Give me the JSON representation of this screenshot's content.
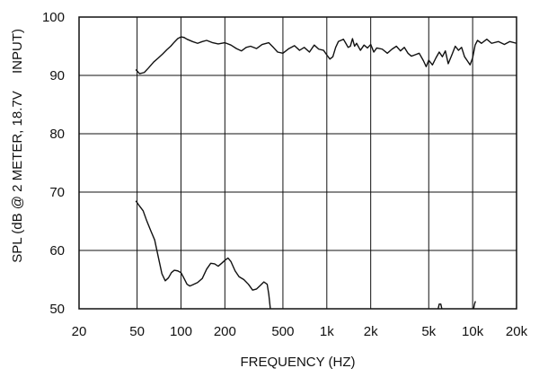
{
  "chart_data": {
    "type": "line",
    "title": "",
    "xlabel": "FREQUENCY  (HZ)",
    "ylabel_parts": [
      "SPL (dB @ 2 METER, 18.7V",
      "INPUT)"
    ],
    "x_scale": "log",
    "xlim": [
      20,
      20000
    ],
    "ylim": [
      50,
      100
    ],
    "grid": true,
    "x_ticks": [
      {
        "value": 20,
        "label": "20"
      },
      {
        "value": 50,
        "label": "50"
      },
      {
        "value": 100,
        "label": "100"
      },
      {
        "value": 200,
        "label": "200"
      },
      {
        "value": 500,
        "label": "500"
      },
      {
        "value": 1000,
        "label": "1k"
      },
      {
        "value": 2000,
        "label": "2k"
      },
      {
        "value": 5000,
        "label": "5k"
      },
      {
        "value": 10000,
        "label": "10k"
      },
      {
        "value": 20000,
        "label": "20k"
      }
    ],
    "y_ticks": [
      {
        "value": 50,
        "label": "50"
      },
      {
        "value": 60,
        "label": "60"
      },
      {
        "value": 70,
        "label": "70"
      },
      {
        "value": 80,
        "label": "80"
      },
      {
        "value": 90,
        "label": "90"
      },
      {
        "value": 100,
        "label": "100"
      }
    ],
    "series": [
      {
        "points": [
          [
            49,
            91
          ],
          [
            52,
            90.3
          ],
          [
            56,
            90.5
          ],
          [
            60,
            91.3
          ],
          [
            65,
            92.3
          ],
          [
            70,
            93
          ],
          [
            75,
            93.7
          ],
          [
            80,
            94.4
          ],
          [
            85,
            95
          ],
          [
            90,
            95.7
          ],
          [
            95,
            96.3
          ],
          [
            100,
            96.6
          ],
          [
            105,
            96.5
          ],
          [
            110,
            96.2
          ],
          [
            120,
            95.8
          ],
          [
            130,
            95.5
          ],
          [
            140,
            95.8
          ],
          [
            150,
            96
          ],
          [
            165,
            95.6
          ],
          [
            180,
            95.4
          ],
          [
            200,
            95.6
          ],
          [
            220,
            95.2
          ],
          [
            240,
            94.6
          ],
          [
            260,
            94.2
          ],
          [
            280,
            94.8
          ],
          [
            300,
            95
          ],
          [
            330,
            94.6
          ],
          [
            360,
            95.3
          ],
          [
            400,
            95.6
          ],
          [
            430,
            94.8
          ],
          [
            460,
            94
          ],
          [
            500,
            93.8
          ],
          [
            550,
            94.6
          ],
          [
            600,
            95.1
          ],
          [
            650,
            94.3
          ],
          [
            700,
            94.8
          ],
          [
            760,
            94
          ],
          [
            820,
            95.2
          ],
          [
            880,
            94.5
          ],
          [
            950,
            94.3
          ],
          [
            1000,
            93.5
          ],
          [
            1050,
            92.8
          ],
          [
            1100,
            93.2
          ],
          [
            1150,
            94.8
          ],
          [
            1200,
            95.8
          ],
          [
            1300,
            96.2
          ],
          [
            1350,
            95.5
          ],
          [
            1400,
            94.8
          ],
          [
            1450,
            95
          ],
          [
            1500,
            96.3
          ],
          [
            1550,
            95
          ],
          [
            1600,
            95.5
          ],
          [
            1700,
            94.3
          ],
          [
            1800,
            95.2
          ],
          [
            1900,
            94.7
          ],
          [
            2000,
            95.3
          ],
          [
            2100,
            94
          ],
          [
            2200,
            94.7
          ],
          [
            2400,
            94.5
          ],
          [
            2600,
            93.8
          ],
          [
            2800,
            94.5
          ],
          [
            3000,
            95
          ],
          [
            3200,
            94.2
          ],
          [
            3400,
            94.8
          ],
          [
            3600,
            93.8
          ],
          [
            3800,
            93.3
          ],
          [
            4000,
            93.5
          ],
          [
            4300,
            93.8
          ],
          [
            4600,
            92.5
          ],
          [
            4800,
            91.5
          ],
          [
            5000,
            92.6
          ],
          [
            5300,
            91.8
          ],
          [
            5600,
            93
          ],
          [
            5900,
            94
          ],
          [
            6200,
            93.2
          ],
          [
            6500,
            94.2
          ],
          [
            6800,
            92
          ],
          [
            7200,
            93.5
          ],
          [
            7600,
            95
          ],
          [
            8000,
            94.3
          ],
          [
            8400,
            94.8
          ],
          [
            8800,
            93.2
          ],
          [
            9200,
            92.5
          ],
          [
            9600,
            91.8
          ],
          [
            10000,
            93
          ],
          [
            10400,
            95.2
          ],
          [
            10800,
            96
          ],
          [
            11500,
            95.5
          ],
          [
            12500,
            96.2
          ],
          [
            13500,
            95.5
          ],
          [
            15000,
            95.8
          ],
          [
            16500,
            95.3
          ],
          [
            18000,
            95.8
          ],
          [
            20000,
            95.5
          ]
        ]
      },
      {
        "points": [
          [
            49,
            68.5
          ],
          [
            52,
            67.6
          ],
          [
            55,
            66.8
          ],
          [
            58,
            65.2
          ],
          [
            62,
            63.4
          ],
          [
            66,
            61.8
          ],
          [
            70,
            58.8
          ],
          [
            74,
            56
          ],
          [
            78,
            54.8
          ],
          [
            82,
            55.3
          ],
          [
            86,
            56.2
          ],
          [
            90,
            56.6
          ],
          [
            95,
            56.5
          ],
          [
            100,
            56.2
          ],
          [
            105,
            55.2
          ],
          [
            110,
            54.2
          ],
          [
            115,
            53.9
          ],
          [
            120,
            54.1
          ],
          [
            130,
            54.5
          ],
          [
            140,
            55.2
          ],
          [
            150,
            56.8
          ],
          [
            160,
            57.8
          ],
          [
            170,
            57.7
          ],
          [
            180,
            57.3
          ],
          [
            190,
            57.8
          ],
          [
            200,
            58.3
          ],
          [
            210,
            58.7
          ],
          [
            220,
            58.1
          ],
          [
            235,
            56.5
          ],
          [
            250,
            55.5
          ],
          [
            270,
            55
          ],
          [
            290,
            54.2
          ],
          [
            310,
            53.2
          ],
          [
            330,
            53.4
          ],
          [
            350,
            54
          ],
          [
            370,
            54.6
          ],
          [
            390,
            54.2
          ],
          [
            400,
            52.5
          ],
          [
            410,
            50
          ]
        ]
      },
      {
        "points": [
          [
            5800,
            50
          ],
          [
            5900,
            50.8
          ],
          [
            6050,
            50.8
          ],
          [
            6150,
            50
          ]
        ]
      },
      {
        "points": [
          [
            10150,
            50
          ],
          [
            10300,
            50.8
          ],
          [
            10450,
            51.3
          ]
        ]
      }
    ]
  }
}
